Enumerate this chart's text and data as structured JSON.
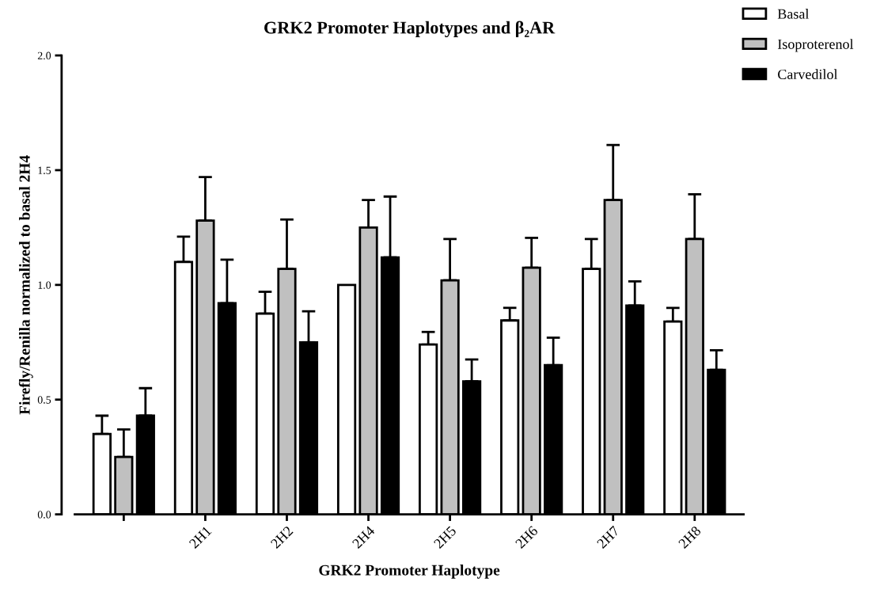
{
  "chart_data": {
    "type": "bar",
    "title": "GRK2 Promoter Haplotypes and β₂AR",
    "xlabel": "GRK2 Promoter Haplotype",
    "ylabel": "Firefly/Renilla normalized to basal 2H4",
    "categories": [
      null,
      "2H1",
      "2H2",
      "2H4",
      "2H5",
      "2H6",
      "2H7",
      "2H8"
    ],
    "series": [
      {
        "name": "Basal",
        "color": "#ffffff",
        "values": [
          0.35,
          1.1,
          0.875,
          1.0,
          0.74,
          0.845,
          1.07,
          0.84
        ],
        "errors": [
          [
            0.35,
            0.43
          ],
          [
            1.1,
            1.21
          ],
          [
            0.875,
            0.97
          ],
          null,
          [
            0.74,
            0.795
          ],
          [
            0.845,
            0.9
          ],
          [
            1.07,
            1.2
          ],
          [
            0.84,
            0.9
          ]
        ]
      },
      {
        "name": "Isoproterenol",
        "color": "#c0c0c0",
        "values": [
          0.25,
          1.28,
          1.07,
          1.25,
          1.02,
          1.075,
          1.37,
          1.2
        ],
        "errors": [
          [
            0.25,
            0.37
          ],
          [
            1.28,
            1.47
          ],
          [
            1.07,
            1.285
          ],
          [
            1.25,
            1.37
          ],
          [
            1.02,
            1.2
          ],
          [
            1.075,
            1.205
          ],
          [
            1.37,
            1.61
          ],
          [
            1.2,
            1.395
          ]
        ]
      },
      {
        "name": "Carvedilol",
        "color": "#000000",
        "values": [
          0.43,
          0.92,
          0.75,
          1.12,
          0.58,
          0.65,
          0.91,
          0.63
        ],
        "errors": [
          [
            0.43,
            0.55
          ],
          [
            0.92,
            1.11
          ],
          [
            0.75,
            0.885
          ],
          [
            1.12,
            1.385
          ],
          [
            0.58,
            0.675
          ],
          [
            0.65,
            0.77
          ],
          [
            0.91,
            1.015
          ],
          [
            0.63,
            0.715
          ]
        ]
      }
    ],
    "ylim": [
      0,
      2.0
    ],
    "yticks": [
      {
        "value": 0,
        "label": "0.0"
      },
      0.5,
      {
        "value": 1.0,
        "label": "1.0"
      },
      1.5,
      {
        "value": 2.0,
        "label": "2.0"
      }
    ],
    "grid": false,
    "legend": "top right"
  }
}
